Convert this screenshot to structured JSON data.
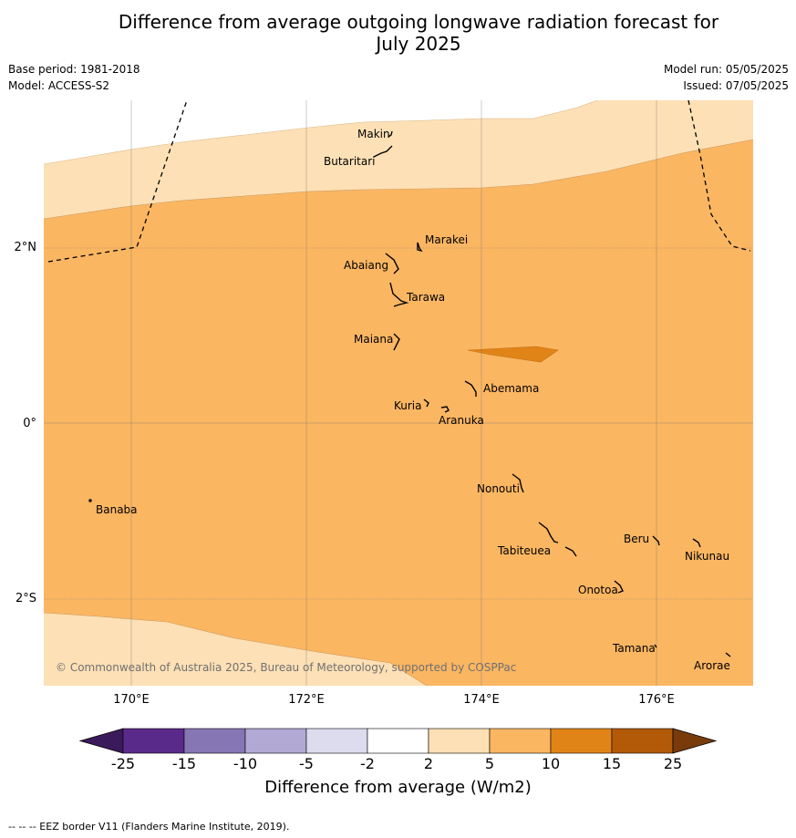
{
  "title_line1": "Difference from average outgoing longwave radiation forecast for",
  "title_line2": "July 2025",
  "base_period": "Base period: 1981-2018",
  "model": "Model: ACCESS-S2",
  "model_run": "Model run: 05/05/2025",
  "issued": "Issued: 07/05/2025",
  "latitude_labels": [
    "2°N",
    "0°",
    "2°S"
  ],
  "longitude_labels": [
    "170°E",
    "172°E",
    "174°E",
    "176°E"
  ],
  "islands": [
    "Makin",
    "Butaritari",
    "Marakei",
    "Abaiang",
    "Tarawa",
    "Maiana",
    "Abemama",
    "Kuria",
    "Aranuka",
    "Nonouti",
    "Banaba",
    "Beru",
    "Nikunau",
    "Tabiteuea",
    "Onotoa",
    "Tamana",
    "Arorae"
  ],
  "copyright": "© Commonwealth of Australia 2025, Bureau of Meteorology, supported by COSPPac",
  "colorbar": {
    "ticks": [
      "-25",
      "-15",
      "-10",
      "-5",
      "-2",
      "2",
      "5",
      "10",
      "15",
      "25"
    ],
    "colors": [
      "#3b1a5c",
      "#5a2a8a",
      "#8676b4",
      "#b2a9d4",
      "#dcdcee",
      "#ffffff",
      "#fde0b5",
      "#fbb662",
      "#e18418",
      "#b35a09",
      "#7a3b0b"
    ],
    "label": "Difference from average (W/m2)"
  },
  "footnote": "--  --  -- EEZ border V11 (Flanders Marine Institute, 2019)."
}
